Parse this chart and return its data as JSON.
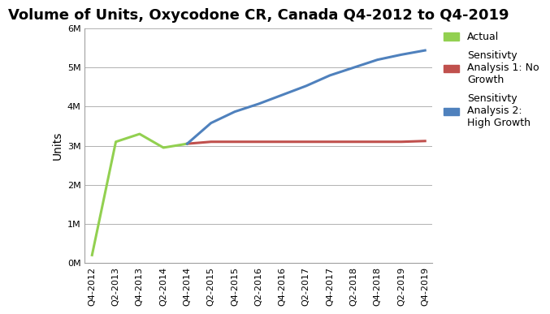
{
  "title": "Volume of Units, Oxycodone CR, Canada Q4-2012 to Q4-2019",
  "ylabel": "Units",
  "ylim": [
    0,
    6000000
  ],
  "yticks": [
    0,
    1000000,
    2000000,
    3000000,
    4000000,
    5000000,
    6000000
  ],
  "ytick_labels": [
    "0M",
    "1M",
    "2M",
    "3M",
    "4M",
    "5M",
    "6M"
  ],
  "x_labels": [
    "Q4-2012",
    "Q2-2013",
    "Q4-2013",
    "Q2-2014",
    "Q4-2014",
    "Q2-2015",
    "Q4-2015",
    "Q2-2016",
    "Q4-2016",
    "Q2-2017",
    "Q4-2017",
    "Q2-2018",
    "Q4-2018",
    "Q2-2019",
    "Q4-2019"
  ],
  "actual_x": [
    0,
    1,
    2,
    3,
    4
  ],
  "actual_y": [
    200000,
    3100000,
    3300000,
    2950000,
    3050000
  ],
  "no_growth_x": [
    4,
    5,
    6,
    7,
    8,
    9,
    10,
    11,
    12,
    13,
    14
  ],
  "no_growth_y": [
    3050000,
    3100000,
    3100000,
    3100000,
    3100000,
    3100000,
    3100000,
    3100000,
    3100000,
    3100000,
    3120000
  ],
  "high_growth_x": [
    4,
    5,
    6,
    7,
    8,
    9,
    10,
    11,
    12,
    13,
    14
  ],
  "high_growth_y": [
    3050000,
    3580000,
    3870000,
    4070000,
    4300000,
    4530000,
    4800000,
    5000000,
    5200000,
    5330000,
    5440000
  ],
  "actual_color": "#92d050",
  "no_growth_color": "#c0504d",
  "high_growth_color": "#4f81bd",
  "line_width": 2.2,
  "background_color": "#ffffff",
  "legend_actual": "Actual",
  "legend_no_growth": "Sensitivty\nAnalysis 1: No\nGrowth",
  "legend_high_growth": "Sensitivty\nAnalysis 2:\nHigh Growth",
  "title_fontsize": 13,
  "axis_label_fontsize": 10,
  "tick_fontsize": 8,
  "legend_fontsize": 9
}
